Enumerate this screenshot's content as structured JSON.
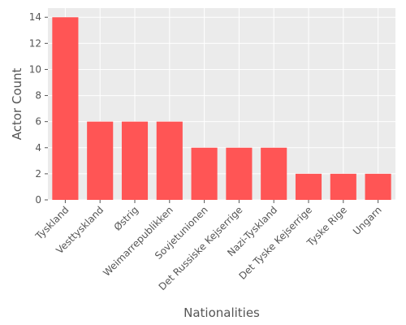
{
  "chart_data": {
    "type": "bar",
    "title": "",
    "xlabel": "Nationalities",
    "ylabel": "Actor Count",
    "categories": [
      "Tyskland",
      "Vesttyskland",
      "Østrig",
      "Weimarrepublikken",
      "Sovjetunionen",
      "Det Russiske Kejserrige",
      "Nazi-Tyskland",
      "Det Tyske Kejserrige",
      "Tyske Rige",
      "Ungarn"
    ],
    "values": [
      14,
      6,
      6,
      6,
      4,
      4,
      4,
      2,
      2,
      2
    ],
    "ylim": [
      0,
      14.7
    ],
    "yticks": [
      0,
      2,
      4,
      6,
      8,
      10,
      12,
      14
    ],
    "grid": true,
    "colors": {
      "bar": "#ff5555",
      "plot_background": "#ebebeb",
      "grid": "#ffffff",
      "text": "#555555"
    }
  }
}
